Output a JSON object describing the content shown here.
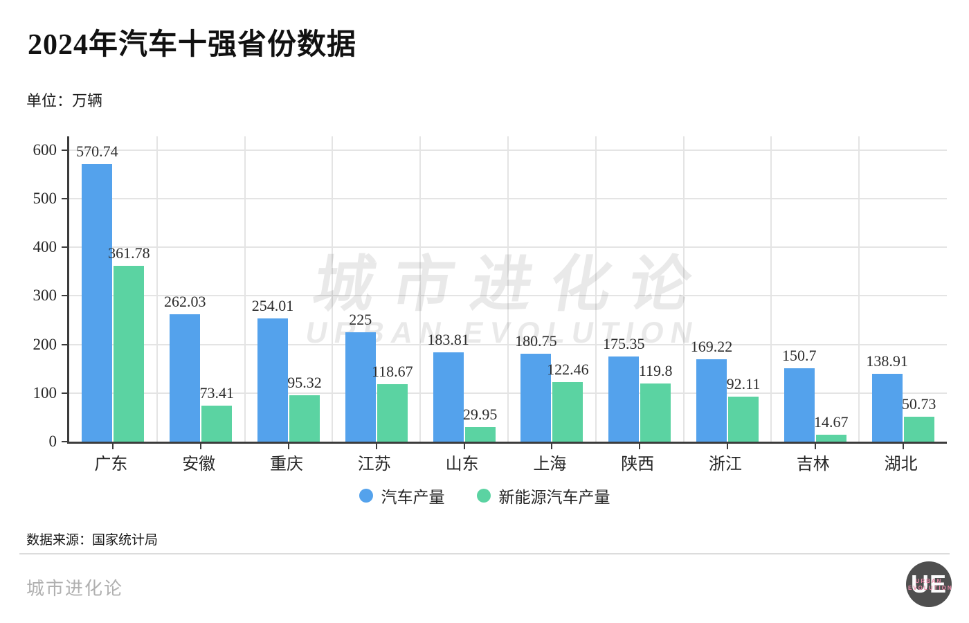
{
  "title": "2024年汽车十强省份数据",
  "unit_label": "单位：万辆",
  "source": "数据来源：国家统计局",
  "footer_brand": "城市进化论",
  "watermark": {
    "cn": "城市进化论",
    "en": "URBAN EVOLUTION"
  },
  "logo": {
    "letters": "UE",
    "sub": "URBAN EVOLUTION"
  },
  "colors": {
    "auto_series": "#54a2ec",
    "nev_series": "#5bd3a2",
    "grid": "#e4e4e4",
    "axis": "#3c3c3c"
  },
  "chart_data": {
    "type": "bar",
    "title": "2024年汽车十强省份数据",
    "unit": "万辆",
    "categories": [
      "广东",
      "安徽",
      "重庆",
      "江苏",
      "山东",
      "上海",
      "陕西",
      "浙江",
      "吉林",
      "湖北"
    ],
    "series": [
      {
        "name": "汽车产量",
        "color": "#54a2ec",
        "values": [
          570.74,
          262.03,
          254.01,
          225,
          183.81,
          180.75,
          175.35,
          169.22,
          150.7,
          138.91
        ]
      },
      {
        "name": "新能源汽车产量",
        "color": "#5bd3a2",
        "values": [
          361.78,
          73.41,
          95.32,
          118.67,
          29.95,
          122.46,
          119.8,
          92.11,
          14.67,
          50.73
        ]
      }
    ],
    "ylim": [
      0,
      600
    ],
    "yticks": [
      0,
      100,
      200,
      300,
      400,
      500,
      600
    ],
    "grid": true,
    "value_labels": true,
    "legend_position": "bottom"
  }
}
